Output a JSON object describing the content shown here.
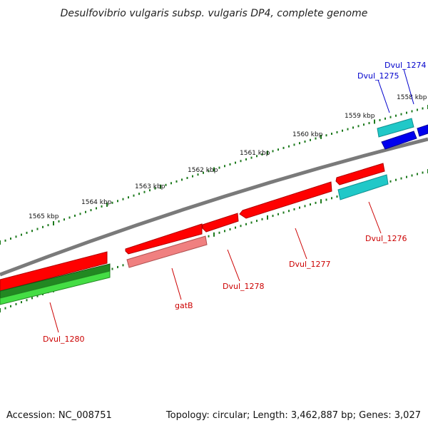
{
  "title": "Desulfovibrio vulgaris subsp. vulgaris DP4, complete genome",
  "footer": {
    "accession": "Accession: NC_008751",
    "summary": "Topology: circular; Length: 3,462,887 bp; Genes: 3,027"
  },
  "colors": {
    "backbone": "#7a7a7a",
    "tick": "#1d7a1d",
    "label_red": "#cc0000",
    "label_blue": "#0000cc",
    "gene_red": "#ff0000",
    "gene_pink": "#f08080",
    "gene_cyan": "#20c8c8",
    "gene_blue": "#0000ee",
    "gene_green_dark": "#228822",
    "gene_green_light": "#44dd44"
  },
  "scale_labels": [
    "1565 kbp",
    "1564 kbp",
    "1563 kbp",
    "1562 kbp",
    "1561 kbp",
    "1560 kbp",
    "1559 kbp",
    "1558 kbp"
  ],
  "genes": [
    {
      "name": "Dvul_1274",
      "color": "label_blue"
    },
    {
      "name": "Dvul_1275",
      "color": "label_blue"
    },
    {
      "name": "Dvul_1276",
      "color": "label_red"
    },
    {
      "name": "Dvul_1277",
      "color": "label_red"
    },
    {
      "name": "Dvul_1278",
      "color": "label_red"
    },
    {
      "name": "gatB",
      "color": "label_red"
    },
    {
      "name": "Dvul_1280",
      "color": "label_red"
    }
  ]
}
